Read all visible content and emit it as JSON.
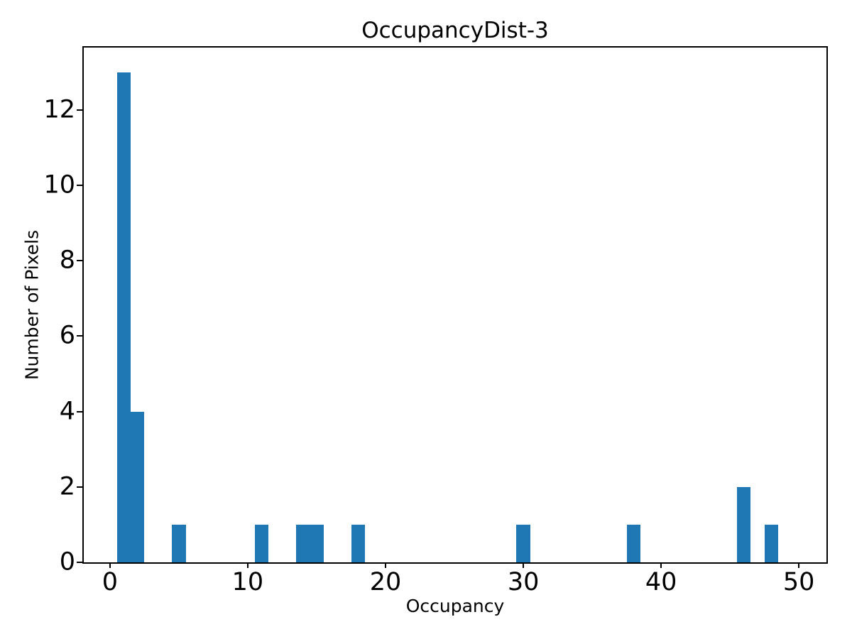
{
  "chart_data": {
    "type": "bar",
    "variant": "histogram",
    "title": "OccupancyDist-3",
    "xlabel": "Occupancy",
    "ylabel": "Number of Pixels",
    "bar_color": "#1f77b4",
    "axis_color": "#000000",
    "text_color": "#000000",
    "background_color": "#ffffff",
    "grid": false,
    "legend_position": "none",
    "bin_width": 1,
    "bin_centers": [
      1,
      2,
      5,
      11,
      14,
      15,
      18,
      30,
      38,
      46,
      48
    ],
    "counts": [
      13,
      4,
      1,
      1,
      1,
      1,
      1,
      1,
      1,
      2,
      1
    ],
    "xticks": [
      0,
      10,
      20,
      30,
      40,
      50
    ],
    "yticks": [
      0,
      2,
      4,
      6,
      8,
      10,
      12
    ],
    "xlim": [
      -1.9,
      52.0
    ],
    "ylim": [
      0,
      13.65
    ]
  }
}
